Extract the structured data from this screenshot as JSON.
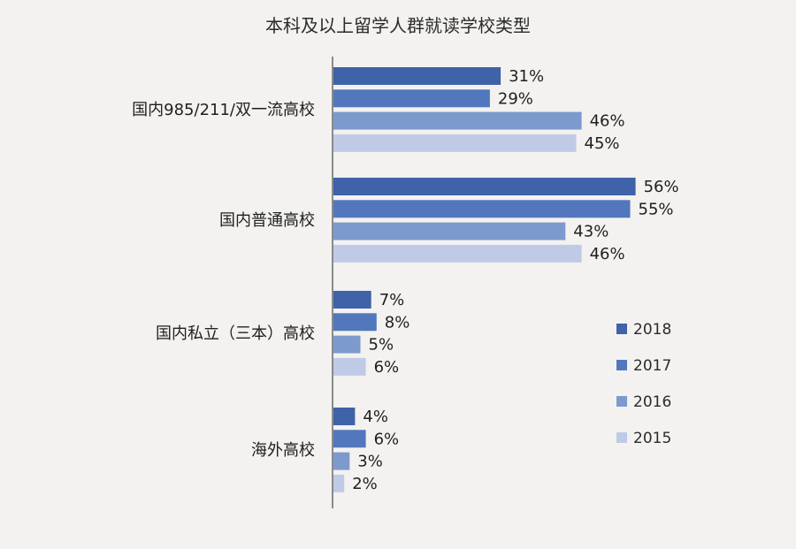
{
  "chart_data": {
    "type": "bar",
    "orientation": "horizontal",
    "title": "本科及以上留学人群就读学校类型",
    "categories": [
      "国内985/211/双一流高校",
      "国内普通高校",
      "国内私立（三本）高校",
      "海外高校"
    ],
    "series": [
      {
        "name": "2018",
        "color": "#3f62a8",
        "values": [
          31,
          56,
          7,
          4
        ]
      },
      {
        "name": "2017",
        "color": "#5277bd",
        "values": [
          29,
          55,
          8,
          6
        ]
      },
      {
        "name": "2016",
        "color": "#7d9ace",
        "values": [
          46,
          43,
          5,
          3
        ]
      },
      {
        "name": "2015",
        "color": "#bfcbe6",
        "values": [
          45,
          46,
          6,
          2
        ]
      }
    ],
    "value_suffix": "%",
    "xlim": [
      0,
      60
    ],
    "legend_position": "right",
    "grid": false
  }
}
